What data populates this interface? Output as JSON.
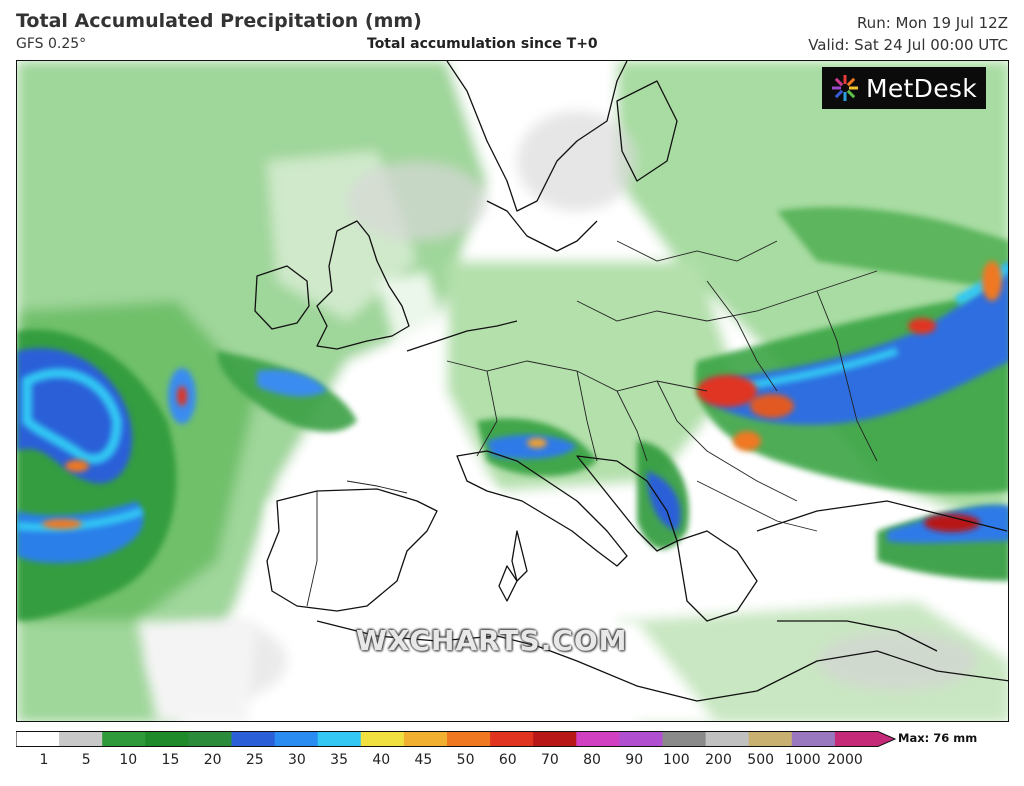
{
  "header": {
    "title": "Total Accumulated Precipitation (mm)",
    "model": "GFS 0.25°",
    "subtitle": "Total accumulation since T+0",
    "run": "Run: Mon 19 Jul 12Z",
    "valid": "Valid: Sat 24 Jul 00:00 UTC"
  },
  "logo": {
    "text": "MetDesk",
    "icon": "metdesk-star-icon"
  },
  "watermark": "WXCHARTS.COM",
  "legend": {
    "max_label": "Max: 76 mm",
    "ticks": [
      "1",
      "5",
      "10",
      "15",
      "20",
      "25",
      "30",
      "35",
      "40",
      "45",
      "50",
      "60",
      "70",
      "80",
      "90",
      "100",
      "200",
      "500",
      "1000",
      "2000"
    ],
    "colors": [
      "#ffffff",
      "#c8c8c8",
      "#2e9a3a",
      "#1f8a2a",
      "#2a8c3a",
      "#2b5fd8",
      "#2a8cf0",
      "#33c8f4",
      "#f0e040",
      "#f2b030",
      "#f07820",
      "#e03420",
      "#b81818",
      "#d040c0",
      "#b050d0",
      "#8a8a8a",
      "#c0c0c0",
      "#c8b070",
      "#9a78c0",
      "#c42a78"
    ]
  }
}
